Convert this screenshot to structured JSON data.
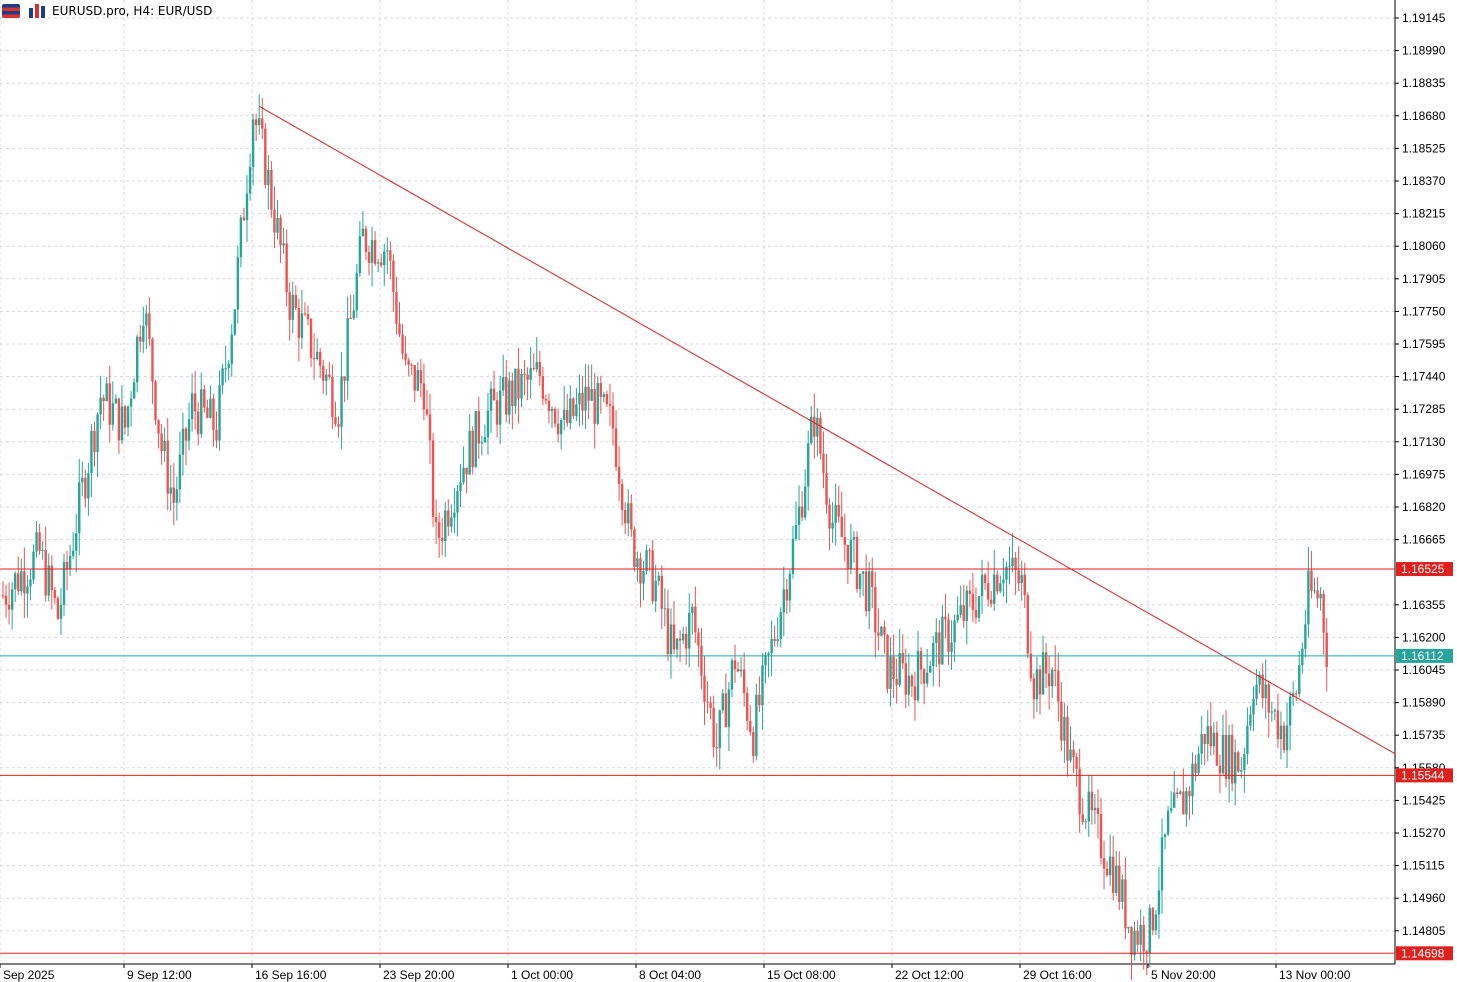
{
  "header": {
    "symbol_label": "EURUSD.pro, H4:  EUR/USD",
    "menu_icon": "chart-menu-icon",
    "chart_type_icon": "bar-chart-icon"
  },
  "colors": {
    "bull": "#26a69a",
    "bear": "#ef5350",
    "line_red": "#e0201c",
    "line_teal": "#26a69a",
    "grid": "#d8d8d8",
    "axis_text": "#000000"
  },
  "price_axis": {
    "ticks": [
      "1.19145",
      "1.18990",
      "1.18835",
      "1.18680",
      "1.18525",
      "1.18370",
      "1.18215",
      "1.18060",
      "1.17905",
      "1.17750",
      "1.17595",
      "1.17440",
      "1.17285",
      "1.17130",
      "1.16975",
      "1.16820",
      "1.16665",
      "1.16355",
      "1.16200",
      "1.16045",
      "1.15890",
      "1.15735",
      "1.15580",
      "1.15425",
      "1.15270",
      "1.15115",
      "1.14960",
      "1.14805"
    ]
  },
  "time_axis": {
    "ticks": [
      "Sep 2025",
      "9 Sep 12:00",
      "16 Sep 16:00",
      "23 Sep 20:00",
      "1 Oct 00:00",
      "8 Oct 04:00",
      "15 Oct 08:00",
      "22 Oct 12:00",
      "29 Oct 16:00",
      "5 Nov 20:00",
      "13 Nov 00:00"
    ]
  },
  "levels": [
    {
      "label": "1.16525",
      "price": 1.16525,
      "color": "#e0201c"
    },
    {
      "label": "1.16112",
      "price": 1.16112,
      "color": "#26a69a"
    },
    {
      "label": "1.15544",
      "price": 1.15544,
      "color": "#e0201c"
    },
    {
      "label": "1.14698",
      "price": 1.14698,
      "color": "#e0201c"
    }
  ],
  "chart_data": {
    "type": "candlestick",
    "symbol": "EURUSD.pro",
    "timeframe": "H4",
    "y_range": [
      1.14658,
      1.19233
    ],
    "x_ticks": [
      "Sep 2025",
      "9 Sep 12:00",
      "16 Sep 16:00",
      "23 Sep 20:00",
      "1 Oct 00:00",
      "8 Oct 04:00",
      "15 Oct 08:00",
      "22 Oct 12:00",
      "29 Oct 16:00",
      "5 Nov 20:00",
      "13 Nov 00:00"
    ],
    "close_path": [
      {
        "t": 0,
        "p": 1.164
      },
      {
        "t": 12,
        "p": 1.166
      },
      {
        "t": 18,
        "p": 1.163
      },
      {
        "t": 32,
        "p": 1.1735
      },
      {
        "t": 40,
        "p": 1.172
      },
      {
        "t": 46,
        "p": 1.178
      },
      {
        "t": 52,
        "p": 1.171
      },
      {
        "t": 56,
        "p": 1.1685
      },
      {
        "t": 62,
        "p": 1.173
      },
      {
        "t": 70,
        "p": 1.172
      },
      {
        "t": 76,
        "p": 1.178
      },
      {
        "t": 82,
        "p": 1.187
      },
      {
        "t": 86,
        "p": 1.1845
      },
      {
        "t": 94,
        "p": 1.178
      },
      {
        "t": 104,
        "p": 1.175
      },
      {
        "t": 110,
        "p": 1.173
      },
      {
        "t": 118,
        "p": 1.181
      },
      {
        "t": 126,
        "p": 1.1805
      },
      {
        "t": 132,
        "p": 1.1745
      },
      {
        "t": 138,
        "p": 1.174
      },
      {
        "t": 142,
        "p": 1.1665
      },
      {
        "t": 150,
        "p": 1.17
      },
      {
        "t": 158,
        "p": 1.1725
      },
      {
        "t": 166,
        "p": 1.1735
      },
      {
        "t": 176,
        "p": 1.1745
      },
      {
        "t": 184,
        "p": 1.172
      },
      {
        "t": 192,
        "p": 1.1735
      },
      {
        "t": 200,
        "p": 1.172
      },
      {
        "t": 206,
        "p": 1.1665
      },
      {
        "t": 214,
        "p": 1.1645
      },
      {
        "t": 220,
        "p": 1.161
      },
      {
        "t": 226,
        "p": 1.163
      },
      {
        "t": 234,
        "p": 1.1568
      },
      {
        "t": 240,
        "p": 1.161
      },
      {
        "t": 246,
        "p": 1.1575
      },
      {
        "t": 252,
        "p": 1.1615
      },
      {
        "t": 260,
        "p": 1.167
      },
      {
        "t": 266,
        "p": 1.1725
      },
      {
        "t": 272,
        "p": 1.1675
      },
      {
        "t": 278,
        "p": 1.166
      },
      {
        "t": 284,
        "p": 1.164
      },
      {
        "t": 290,
        "p": 1.1605
      },
      {
        "t": 298,
        "p": 1.16
      },
      {
        "t": 306,
        "p": 1.1615
      },
      {
        "t": 312,
        "p": 1.1625
      },
      {
        "t": 320,
        "p": 1.164
      },
      {
        "t": 328,
        "p": 1.1655
      },
      {
        "t": 334,
        "p": 1.1645
      },
      {
        "t": 338,
        "p": 1.16
      },
      {
        "t": 344,
        "p": 1.1605
      },
      {
        "t": 350,
        "p": 1.156
      },
      {
        "t": 356,
        "p": 1.1535
      },
      {
        "t": 364,
        "p": 1.151
      },
      {
        "t": 370,
        "p": 1.148
      },
      {
        "t": 376,
        "p": 1.148
      },
      {
        "t": 382,
        "p": 1.153
      },
      {
        "t": 388,
        "p": 1.1545
      },
      {
        "t": 394,
        "p": 1.1575
      },
      {
        "t": 400,
        "p": 1.1565
      },
      {
        "t": 406,
        "p": 1.156
      },
      {
        "t": 410,
        "p": 1.16
      },
      {
        "t": 414,
        "p": 1.159
      },
      {
        "t": 420,
        "p": 1.1575
      },
      {
        "t": 424,
        "p": 1.1595
      },
      {
        "t": 428,
        "p": 1.164
      },
      {
        "t": 432,
        "p": 1.164
      },
      {
        "t": 434,
        "p": 1.1615
      }
    ],
    "trendline": {
      "from": {
        "t": 84,
        "p": 1.18725
      },
      "to": {
        "t": 464,
        "p": 1.15584
      }
    },
    "horizontal_lines": [
      1.16525,
      1.16112,
      1.15544,
      1.14698
    ],
    "grid": true
  }
}
